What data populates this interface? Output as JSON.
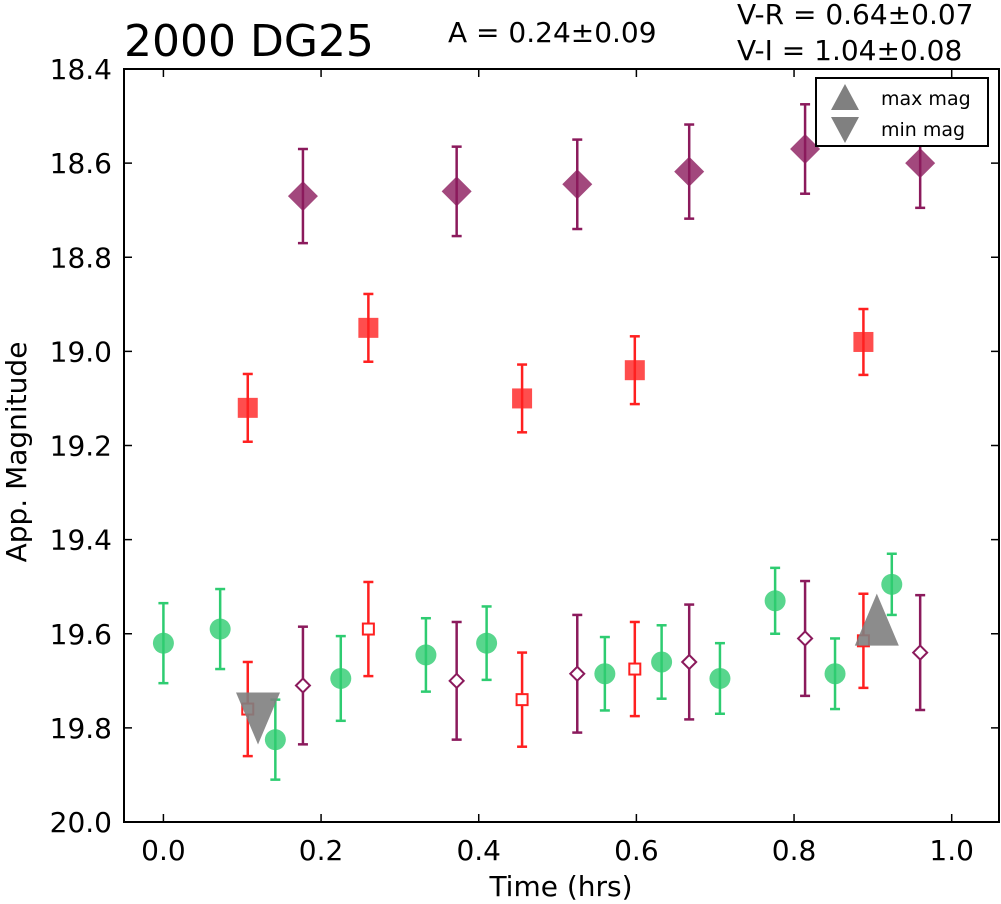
{
  "chart_data": {
    "type": "scatter",
    "title": "2000 DG25",
    "annotations": {
      "amplitude": "A  = 0.24±0.09",
      "v_r": "V-R = 0.64±0.07",
      "v_i": "V-I  = 1.04±0.08"
    },
    "xlabel": "Time (hrs)",
    "ylabel": "App. Magnitude",
    "xlim": [
      -0.05,
      1.06
    ],
    "ylim": [
      20.0,
      18.4
    ],
    "y_inverted": true,
    "grid": false,
    "xticks": [
      "0.0",
      "0.2",
      "0.4",
      "0.6",
      "0.8",
      "1.0"
    ],
    "yticks": [
      "18.4",
      "18.6",
      "18.8",
      "19.0",
      "19.2",
      "19.4",
      "19.6",
      "19.8",
      "20.0"
    ],
    "legend": {
      "placement": "top-right",
      "entries": [
        {
          "label": "max mag",
          "marker": "triangle-up",
          "color": "#808080"
        },
        {
          "label": "min mag",
          "marker": "triangle-down",
          "color": "#808080"
        }
      ]
    },
    "series": [
      {
        "marker": "diamond",
        "filled": true,
        "color": "#8b1a5c",
        "x": [
          0.177,
          0.372,
          0.525,
          0.667,
          0.814,
          0.96
        ],
        "y": [
          18.67,
          18.66,
          18.645,
          18.618,
          18.57,
          18.6
        ],
        "err": [
          0.1,
          0.095,
          0.095,
          0.1,
          0.095,
          0.095
        ]
      },
      {
        "marker": "square",
        "filled": true,
        "color": "#ff2020",
        "x": [
          0.107,
          0.26,
          0.455,
          0.598,
          0.888
        ],
        "y": [
          19.12,
          18.95,
          19.1,
          19.04,
          18.98
        ],
        "err": [
          0.072,
          0.072,
          0.072,
          0.072,
          0.07
        ]
      },
      {
        "marker": "circle",
        "filled": true,
        "color": "#2ecc71",
        "x": [
          0.0,
          0.072,
          0.142,
          0.225,
          0.333,
          0.41,
          0.56,
          0.632,
          0.706,
          0.776,
          0.852,
          0.924
        ],
        "y": [
          19.62,
          19.59,
          19.825,
          19.695,
          19.645,
          19.62,
          19.685,
          19.66,
          19.695,
          19.53,
          19.685,
          19.495
        ],
        "err": [
          0.085,
          0.085,
          0.085,
          0.09,
          0.078,
          0.078,
          0.078,
          0.078,
          0.075,
          0.07,
          0.075,
          0.065
        ]
      },
      {
        "marker": "diamond",
        "filled": false,
        "color": "#8b1a5c",
        "x": [
          0.177,
          0.372,
          0.525,
          0.667,
          0.814,
          0.96
        ],
        "y": [
          19.71,
          19.7,
          19.685,
          19.66,
          19.61,
          19.64
        ],
        "err": [
          0.125,
          0.125,
          0.125,
          0.122,
          0.122,
          0.122
        ]
      },
      {
        "marker": "square",
        "filled": false,
        "color": "#ff2020",
        "x": [
          0.107,
          0.26,
          0.455,
          0.598,
          0.888
        ],
        "y": [
          19.76,
          19.59,
          19.74,
          19.675,
          19.615
        ],
        "err": [
          0.1,
          0.1,
          0.1,
          0.1,
          0.1
        ]
      }
    ],
    "markers": [
      {
        "name": "min-mag-marker",
        "marker": "triangle-down",
        "x": 0.12,
        "y": 19.78,
        "color": "#808080"
      },
      {
        "name": "max-mag-marker",
        "marker": "triangle-up",
        "x": 0.905,
        "y": 19.57,
        "color": "#808080"
      }
    ]
  }
}
